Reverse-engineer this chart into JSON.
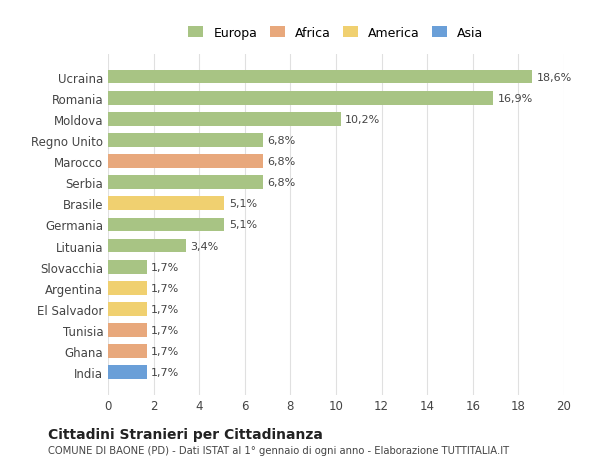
{
  "countries": [
    "Ucraina",
    "Romania",
    "Moldova",
    "Regno Unito",
    "Marocco",
    "Serbia",
    "Brasile",
    "Germania",
    "Lituania",
    "Slovacchia",
    "Argentina",
    "El Salvador",
    "Tunisia",
    "Ghana",
    "India"
  ],
  "values": [
    18.6,
    16.9,
    10.2,
    6.8,
    6.8,
    6.8,
    5.1,
    5.1,
    3.4,
    1.7,
    1.7,
    1.7,
    1.7,
    1.7,
    1.7
  ],
  "labels": [
    "18,6%",
    "16,9%",
    "10,2%",
    "6,8%",
    "6,8%",
    "6,8%",
    "5,1%",
    "5,1%",
    "3,4%",
    "1,7%",
    "1,7%",
    "1,7%",
    "1,7%",
    "1,7%",
    "1,7%"
  ],
  "continents": [
    "Europa",
    "Europa",
    "Europa",
    "Europa",
    "Africa",
    "Europa",
    "America",
    "Europa",
    "Europa",
    "Europa",
    "America",
    "America",
    "Africa",
    "Africa",
    "Asia"
  ],
  "colors": {
    "Europa": "#a8c484",
    "Africa": "#e8a87c",
    "America": "#f0d070",
    "Asia": "#6a9fd8"
  },
  "title": "Cittadini Stranieri per Cittadinanza",
  "subtitle": "COMUNE DI BAONE (PD) - Dati ISTAT al 1° gennaio di ogni anno - Elaborazione TUTTITALIA.IT",
  "xlim": [
    0,
    20
  ],
  "xticks": [
    0,
    2,
    4,
    6,
    8,
    10,
    12,
    14,
    16,
    18,
    20
  ],
  "background_color": "#ffffff",
  "grid_color": "#e0e0e0",
  "legend_order": [
    "Europa",
    "Africa",
    "America",
    "Asia"
  ]
}
